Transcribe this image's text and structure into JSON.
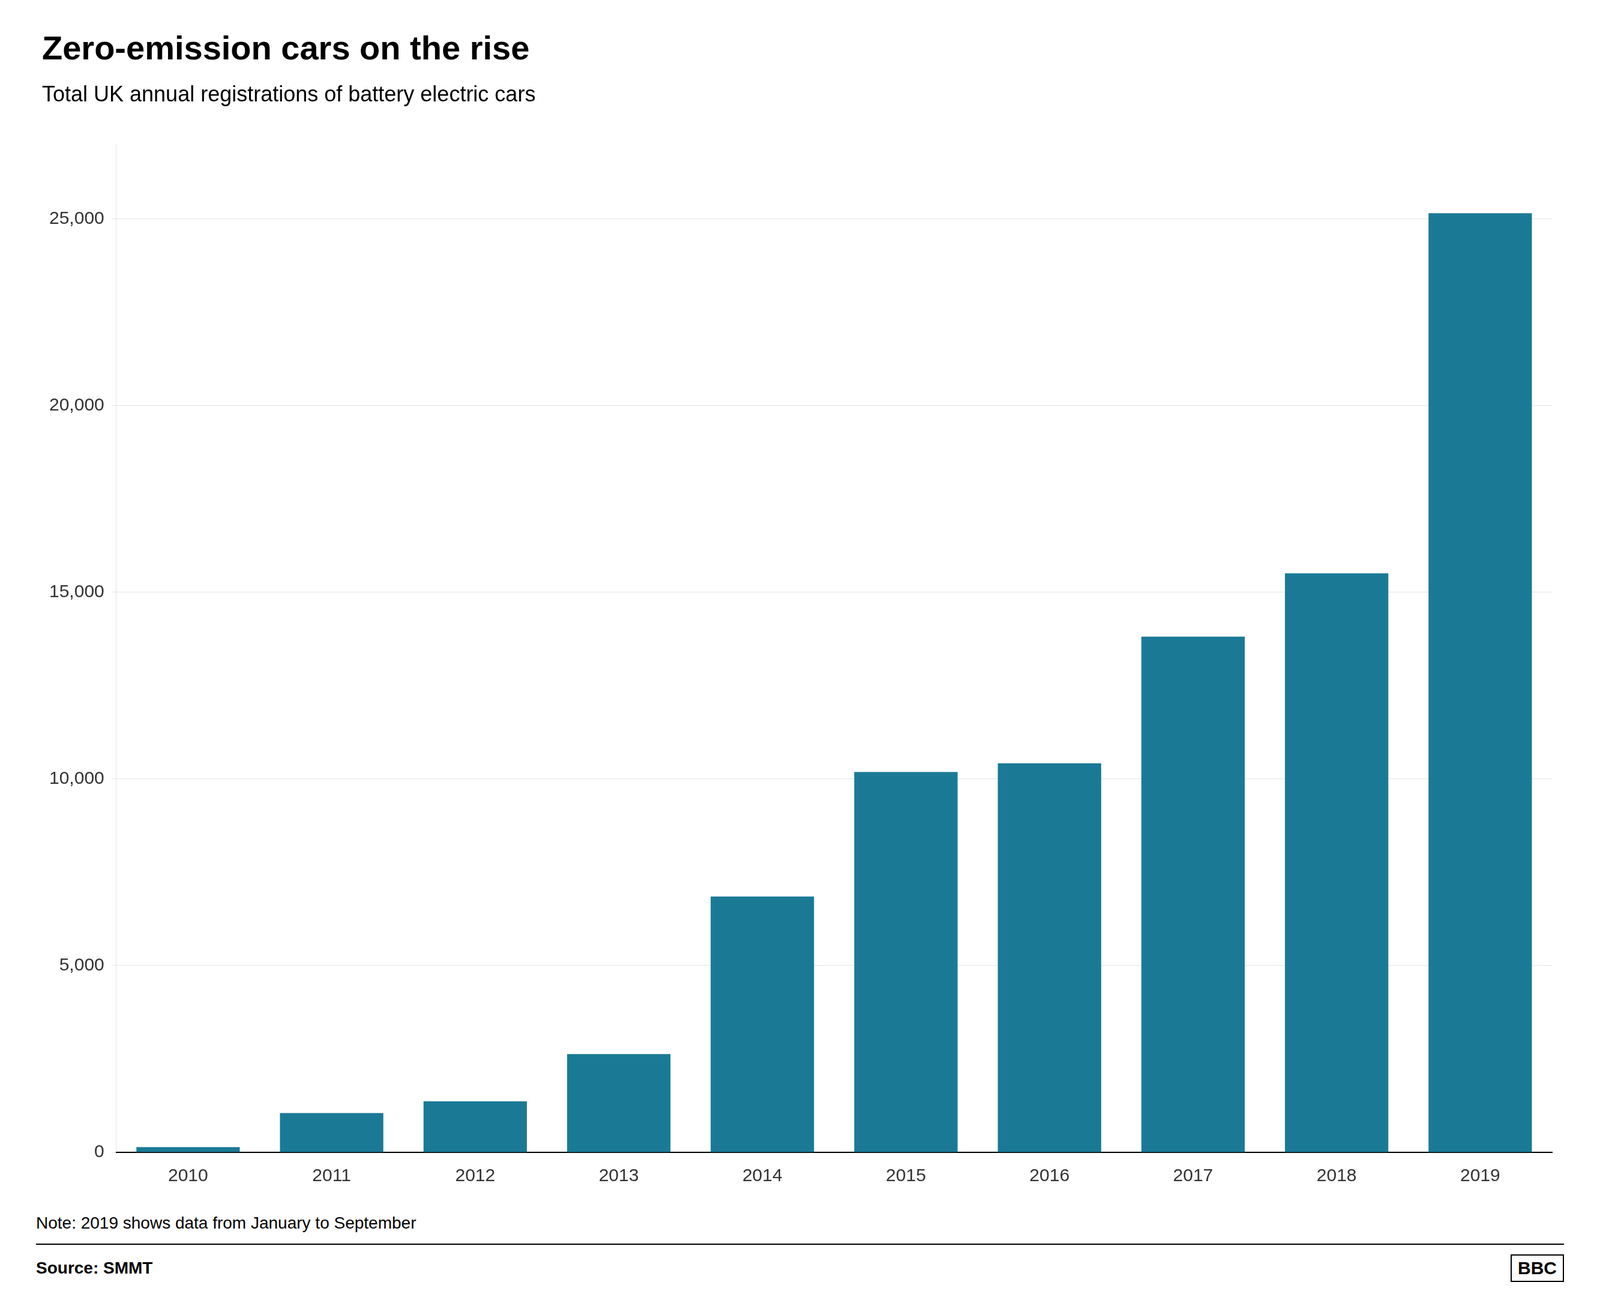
{
  "chart_data": {
    "type": "bar",
    "title": "Zero-emission cars on the rise",
    "subtitle": "Total UK annual registrations of battery electric cars",
    "categories": [
      "2010",
      "2011",
      "2012",
      "2013",
      "2014",
      "2015",
      "2016",
      "2017",
      "2018",
      "2019"
    ],
    "values": [
      139,
      1052,
      1368,
      2634,
      6853,
      10189,
      10420,
      13813,
      15510,
      25154
    ],
    "color": "#1a7a96",
    "ylim": [
      0,
      27000
    ],
    "yticks": [
      0,
      {
        "value": 5000,
        "label": "5,000"
      },
      {
        "value": 10000,
        "label": "10,000"
      },
      {
        "value": 15000,
        "label": "15,000"
      },
      {
        "value": 20000,
        "label": "20,000"
      },
      {
        "value": 25000,
        "label": "25,000"
      }
    ],
    "grid": true,
    "annotations": [
      "Note: 2019 shows data from January to September",
      "Source: SMMT",
      "BBC"
    ]
  }
}
